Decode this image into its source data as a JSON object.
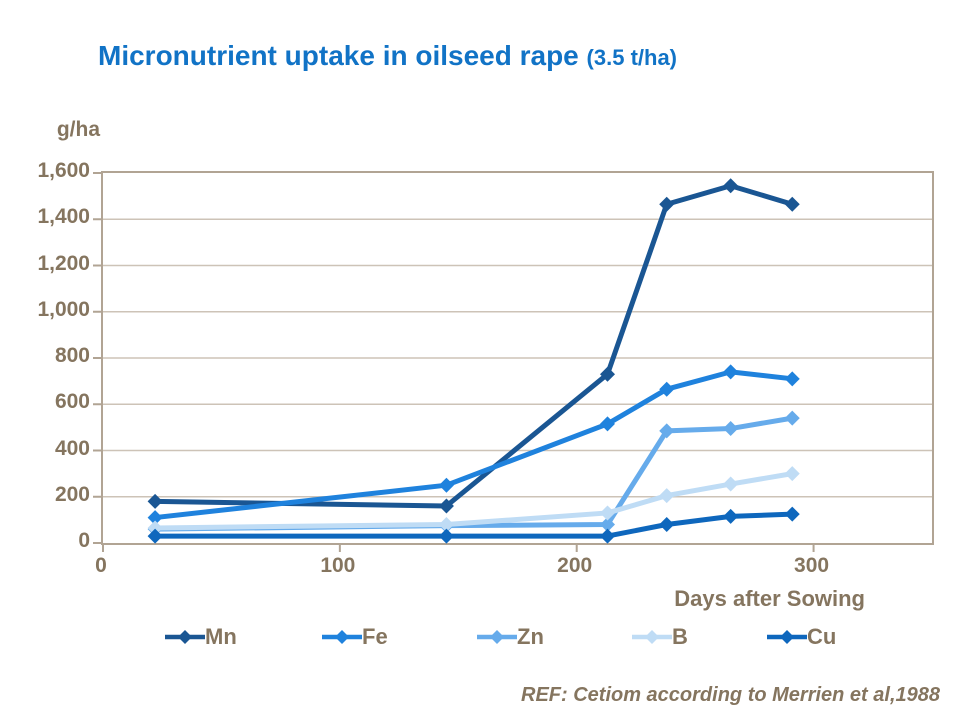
{
  "title": {
    "main": "Micronutrient uptake in oilseed rape ",
    "suffix": "(3.5 t/ha)"
  },
  "y_axis_unit_label": "g/ha",
  "x_axis_label": "Days after Sowing",
  "footer": "REF: Cetiom according to Merrien et al,1988",
  "colors": {
    "title_blue": "#1173C6",
    "text_brown": "#85755F",
    "gridline": "#CDC3B7",
    "axis": "#B1A494",
    "mn": "#1A5693",
    "fe": "#1F82DD",
    "zn": "#66ABEB",
    "b": "#BFDCF5",
    "cu": "#0E67BD"
  },
  "legend_item_lefts": [
    165,
    322,
    477,
    632,
    767
  ],
  "chart_data": {
    "type": "line",
    "title": "Micronutrient uptake in oilseed rape (3.5 t/ha)",
    "xlabel": "Days after Sowing",
    "ylabel": "g/ha",
    "xlim": [
      0,
      350
    ],
    "ylim": [
      0,
      1600
    ],
    "x_ticks": [
      0,
      100,
      200,
      300
    ],
    "y_ticks": [
      0,
      200,
      400,
      600,
      800,
      1000,
      1200,
      1400,
      1600
    ],
    "grid": "horizontal",
    "legend_position": "bottom",
    "marker": "diamond",
    "x": [
      22,
      145,
      213,
      238,
      265,
      291
    ],
    "series": [
      {
        "name": "Mn",
        "color": "#1A5693",
        "values": [
          180,
          160,
          730,
          1465,
          1545,
          1465
        ]
      },
      {
        "name": "Fe",
        "color": "#1F82DD",
        "values": [
          110,
          250,
          515,
          665,
          740,
          710
        ]
      },
      {
        "name": "Zn",
        "color": "#66ABEB",
        "values": [
          60,
          75,
          80,
          485,
          495,
          540
        ]
      },
      {
        "name": "B",
        "color": "#BFDCF5",
        "values": [
          65,
          80,
          130,
          205,
          255,
          300
        ]
      },
      {
        "name": "Cu",
        "color": "#0E67BD",
        "values": [
          30,
          30,
          30,
          80,
          115,
          125
        ]
      }
    ]
  }
}
